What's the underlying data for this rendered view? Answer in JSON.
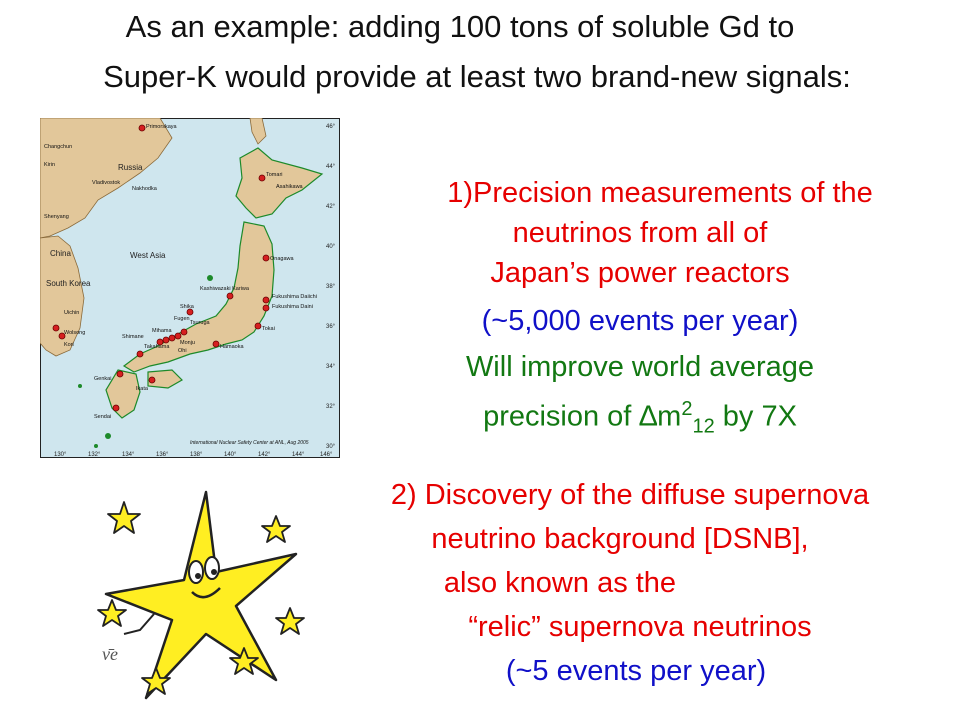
{
  "title": {
    "line1": "As an example: adding 100 tons of soluble Gd to",
    "line2": "Super-K would provide at least two brand-new signals:"
  },
  "item1": {
    "line1": "1)Precision measurements of the",
    "line2": "neutrinos from all of",
    "line3": "Japan’s power reactors",
    "events": "(~5,000 events per year)",
    "improve_line1": "Will improve world average",
    "improve_prefix": "precision of ∆m",
    "improve_sup": "2",
    "improve_sub": "12",
    "improve_suffix": " by 7X"
  },
  "item2": {
    "line1": "2) Discovery of the diffuse supernova",
    "line2": "neutrino background [DSNB],",
    "line3": "also known as the",
    "line4": "“relic” supernova neutrinos",
    "events": "(~5 events per year)"
  },
  "map": {
    "credit": "International Nuclear Safety Center at ANL, Aug 2005",
    "countries": [
      "Russia",
      "China",
      "South Korea",
      "West Asia"
    ],
    "plants": [
      "Tomari",
      "Onagawa",
      "Kashiwazaki Kariwa",
      "Fukushima Daiichi",
      "Fukushima Daini",
      "Tokai",
      "Hamaoka",
      "Shika",
      "Tsuruga",
      "Fugen",
      "Mihama",
      "Monju",
      "Ohi",
      "Takahama",
      "Shimane",
      "Ikata",
      "Genkai",
      "Sendai"
    ],
    "cities": [
      "Primorskaya",
      "Vladivostok",
      "Nakhodka",
      "Changchun",
      "Kirin",
      "Shenyang",
      "Uichin",
      "Wolsong",
      "Kori",
      "Asahikawa"
    ],
    "lon_ticks": [
      "130°",
      "132°",
      "134°",
      "136°",
      "138°",
      "140°",
      "142°",
      "144°",
      "146°"
    ],
    "lat_ticks": [
      "46°",
      "44°",
      "42°",
      "40°",
      "38°",
      "36°",
      "34°",
      "32°",
      "30°"
    ]
  },
  "star_symbol": "ν̄e"
}
